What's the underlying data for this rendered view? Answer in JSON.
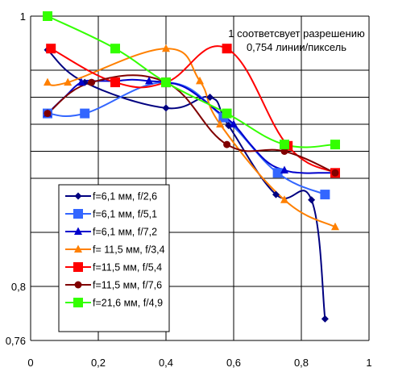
{
  "chart_data": {
    "type": "line",
    "annotation": [
      "1 соответсвует разрешению",
      "0,754 линии/пиксель"
    ],
    "xlim": [
      0,
      1
    ],
    "ylim": [
      0.76,
      1
    ],
    "x_ticks": [
      {
        "value": 0,
        "label": "0"
      },
      {
        "value": 0.2,
        "label": "0,2"
      },
      {
        "value": 0.4,
        "label": "0,4"
      },
      {
        "value": 0.6,
        "label": "0,6"
      },
      {
        "value": 0.8,
        "label": "0,8"
      },
      {
        "value": 1,
        "label": "1"
      }
    ],
    "y_ticks": [
      {
        "value": 1,
        "label": "1"
      },
      {
        "value": 0.8,
        "label": "0,8"
      },
      {
        "value": 0.76,
        "label": "0,76"
      }
    ],
    "y_gridlines": [
      0.96,
      0.94,
      0.92,
      0.9,
      0.88,
      0.84
    ],
    "grid": true,
    "legend_placement": "bottom-left",
    "series": [
      {
        "name": "f=6,1 мм, f/2,6",
        "color": "#000080",
        "marker": "diamond",
        "x": [
          0.05,
          0.16,
          0.4,
          0.53,
          0.585,
          0.725,
          0.83,
          0.87
        ],
        "y": [
          0.975,
          0.951,
          0.932,
          0.94,
          0.919,
          0.868,
          0.864,
          0.776
        ]
      },
      {
        "name": "f=6,1 мм, f/5,1",
        "color": "#3366ff",
        "marker": "square",
        "x": [
          0.05,
          0.16,
          0.4,
          0.57,
          0.73,
          0.87
        ],
        "y": [
          0.928,
          0.928,
          0.951,
          0.925,
          0.884,
          0.868
        ]
      },
      {
        "name": "f=6,1 мм, f/7,2",
        "color": "#0000cc",
        "marker": "triangle",
        "x": [
          0.05,
          0.1,
          0.15,
          0.2,
          0.25,
          0.3,
          0.35,
          0.4,
          0.45,
          0.5,
          0.55,
          0.6,
          0.65,
          0.7,
          0.75,
          0.8,
          0.85,
          0.9
        ],
        "y": [
          0.928,
          0.94,
          0.951,
          0.952,
          0.952,
          0.953,
          0.952,
          0.951,
          0.948,
          0.94,
          0.93,
          0.92,
          0.905,
          0.892,
          0.886,
          0.884,
          0.884,
          0.884
        ]
      },
      {
        "name": "f= 11,5 мм, f/3,4",
        "color": "#ff8000",
        "marker": "triangle",
        "x": [
          0.05,
          0.11,
          0.4,
          0.5,
          0.56,
          0.75,
          0.9
        ],
        "y": [
          0.951,
          0.951,
          0.976,
          0.952,
          0.92,
          0.864,
          0.844
        ]
      },
      {
        "name": "f=11,5 мм, f/5,4",
        "color": "#ff0000",
        "marker": "square",
        "x": [
          0.06,
          0.25,
          0.4,
          0.58,
          0.76,
          0.9
        ],
        "y": [
          0.976,
          0.951,
          0.951,
          0.976,
          0.904,
          0.884
        ]
      },
      {
        "name": "f=11,5 мм, f/7,6",
        "color": "#800000",
        "marker": "circle",
        "x": [
          0.05,
          0.18,
          0.4,
          0.58,
          0.75,
          0.9
        ],
        "y": [
          0.928,
          0.951,
          0.951,
          0.905,
          0.9,
          0.884
        ]
      },
      {
        "name": "f=21,6 мм, f/4,9",
        "color": "#33ff00",
        "marker": "square",
        "x": [
          0.05,
          0.25,
          0.4,
          0.58,
          0.75,
          0.9
        ],
        "y": [
          1.0,
          0.976,
          0.951,
          0.928,
          0.905,
          0.905
        ]
      }
    ]
  }
}
